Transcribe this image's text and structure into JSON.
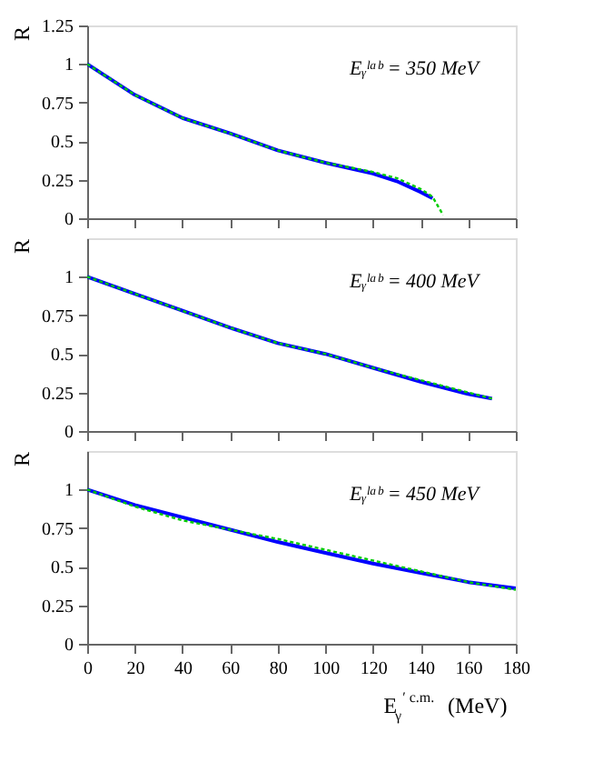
{
  "chart_data": [
    {
      "type": "line",
      "ylabel": "R",
      "annotations": [
        "Eᵧˡᵃᵇ = 350 MeV"
      ],
      "xlim": [
        0,
        180
      ],
      "xticks": [
        0,
        20,
        40,
        60,
        80,
        100,
        120,
        140,
        160,
        180
      ],
      "ylim": [
        0,
        1.25
      ],
      "yticks": [
        0,
        0.25,
        0.5,
        0.75,
        1,
        1.25
      ],
      "tick_labels": "y",
      "grid": false,
      "series": [
        {
          "color": "#0000ff",
          "line_style": "solid",
          "x": [
            0,
            20,
            40,
            60,
            80,
            100,
            120,
            130,
            140,
            145
          ],
          "values": [
            1.0,
            0.8,
            0.65,
            0.55,
            0.44,
            0.36,
            0.29,
            0.24,
            0.17,
            0.13
          ]
        },
        {
          "color": "#00cc00",
          "line_style": "dotted",
          "x": [
            0,
            20,
            40,
            60,
            80,
            100,
            120,
            130,
            140,
            145,
            149.5
          ],
          "values": [
            1.0,
            0.8,
            0.65,
            0.55,
            0.44,
            0.36,
            0.3,
            0.26,
            0.19,
            0.14,
            0.02
          ]
        }
      ]
    },
    {
      "type": "line",
      "ylabel": "R",
      "annotations": [
        "Eᵧˡᵃᵇ = 400 MeV"
      ],
      "xlim": [
        0,
        180
      ],
      "xticks": [
        0,
        20,
        40,
        60,
        80,
        100,
        120,
        140,
        160,
        180
      ],
      "ylim": [
        0,
        1.25
      ],
      "yticks": [
        0,
        0.25,
        0.5,
        0.75,
        1
      ],
      "tick_labels": "y",
      "grid": false,
      "series": [
        {
          "color": "#0000ff",
          "line_style": "solid",
          "x": [
            0,
            20,
            40,
            60,
            80,
            100,
            120,
            140,
            160,
            170
          ],
          "values": [
            1.0,
            0.89,
            0.78,
            0.67,
            0.57,
            0.5,
            0.41,
            0.32,
            0.24,
            0.21
          ]
        },
        {
          "color": "#00cc00",
          "line_style": "dotted",
          "x": [
            0,
            20,
            40,
            60,
            80,
            100,
            120,
            140,
            160,
            170
          ],
          "values": [
            1.0,
            0.89,
            0.78,
            0.67,
            0.57,
            0.5,
            0.41,
            0.33,
            0.25,
            0.21
          ]
        }
      ]
    },
    {
      "type": "line",
      "ylabel": "R",
      "xlabel": "E$_{γ}$$^{′ c.m.}$ (MeV)",
      "annotations": [
        "Eᵧˡᵃᵇ = 450 MeV"
      ],
      "xlim": [
        0,
        180
      ],
      "xticks": [
        0,
        20,
        40,
        60,
        80,
        100,
        120,
        140,
        160,
        180
      ],
      "ylim": [
        0,
        1.25
      ],
      "yticks": [
        0,
        0.25,
        0.5,
        0.75,
        1
      ],
      "grid": false,
      "series": [
        {
          "color": "#0000ff",
          "line_style": "solid",
          "x": [
            0,
            20,
            40,
            60,
            80,
            100,
            120,
            140,
            160,
            180
          ],
          "values": [
            1.0,
            0.9,
            0.82,
            0.74,
            0.66,
            0.59,
            0.52,
            0.46,
            0.4,
            0.36
          ]
        },
        {
          "color": "#00cc00",
          "line_style": "dotted",
          "x": [
            0,
            20,
            40,
            60,
            80,
            100,
            120,
            140,
            160,
            180
          ],
          "values": [
            1.0,
            0.89,
            0.8,
            0.74,
            0.68,
            0.61,
            0.54,
            0.47,
            0.4,
            0.35
          ]
        }
      ]
    }
  ]
}
